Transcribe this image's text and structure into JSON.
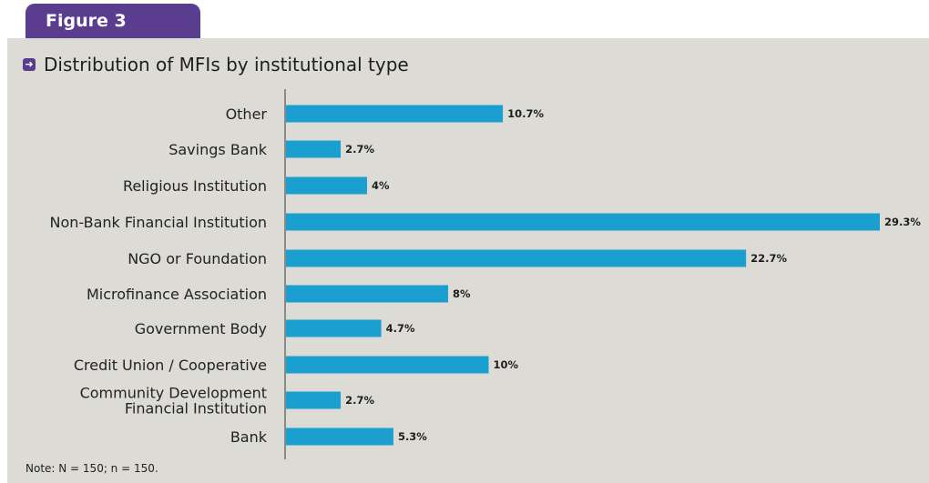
{
  "figure_label": "Figure 3",
  "title_icon": "arrow-right-icon",
  "note": "Note: N = 150; n = 150.",
  "colors": {
    "bar": "#1a9fd0",
    "accent": "#5a3d8e",
    "panel": "#dcdbd6"
  },
  "chart_data": {
    "type": "bar",
    "orientation": "horizontal",
    "title": "Distribution of MFIs by institutional type",
    "xlabel": "",
    "ylabel": "",
    "grid": false,
    "categories": [
      "Other",
      "Savings Bank",
      "Religious Institution",
      "Non-Bank Financial Institution",
      "NGO or Foundation",
      "Microfinance Association",
      "Government Body",
      "Credit Union / Cooperative",
      "Community Development Financial Institution",
      "Bank"
    ],
    "category_lines": [
      [
        "Other"
      ],
      [
        "Savings Bank"
      ],
      [
        "Religious Institution"
      ],
      [
        "Non-Bank Financial Institution"
      ],
      [
        "NGO or Foundation"
      ],
      [
        "Microfinance Association"
      ],
      [
        "Government Body"
      ],
      [
        "Credit Union / Cooperative"
      ],
      [
        "Community Development",
        "Financial Institution"
      ],
      [
        "Bank"
      ]
    ],
    "values": [
      10.7,
      2.7,
      4,
      29.3,
      22.7,
      8,
      4.7,
      10,
      2.7,
      5.3
    ],
    "value_labels": [
      "10.7%",
      "2.7%",
      "4%",
      "29.3%",
      "22.7%",
      "8%",
      "4.7%",
      "10%",
      "2.7%",
      "5.3%"
    ]
  }
}
